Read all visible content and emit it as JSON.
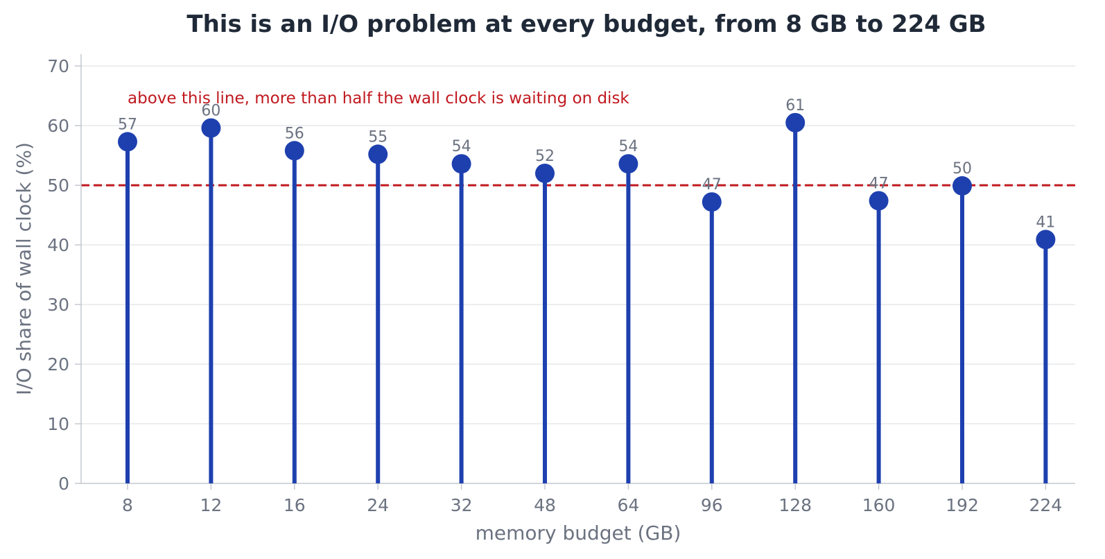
{
  "chart_data": {
    "type": "lollipop",
    "title": "This is an I/O problem at every budget, from 8 GB to 224 GB",
    "xlabel": "memory budget (GB)",
    "ylabel": "I/O share of wall clock (%)",
    "ylim": [
      0,
      72
    ],
    "yticks": [
      0,
      10,
      20,
      30,
      40,
      50,
      60,
      70
    ],
    "grid": true,
    "categories": [
      "8",
      "12",
      "16",
      "24",
      "32",
      "48",
      "64",
      "96",
      "128",
      "160",
      "192",
      "224"
    ],
    "values": [
      57.3,
      59.6,
      55.8,
      55.2,
      53.6,
      52.0,
      53.6,
      47.2,
      60.5,
      47.4,
      49.9,
      40.9
    ],
    "value_labels": [
      "57",
      "60",
      "56",
      "55",
      "54",
      "52",
      "54",
      "47",
      "61",
      "47",
      "50",
      "41"
    ],
    "reference_line": {
      "y": 50,
      "annotation": "above this line, more than half the wall clock is waiting on disk"
    },
    "colors": {
      "series": "#1e40af",
      "reference": "#c0191f",
      "grid": "#e5e7eb",
      "text": "#6b7280",
      "title": "#1f2937"
    }
  }
}
